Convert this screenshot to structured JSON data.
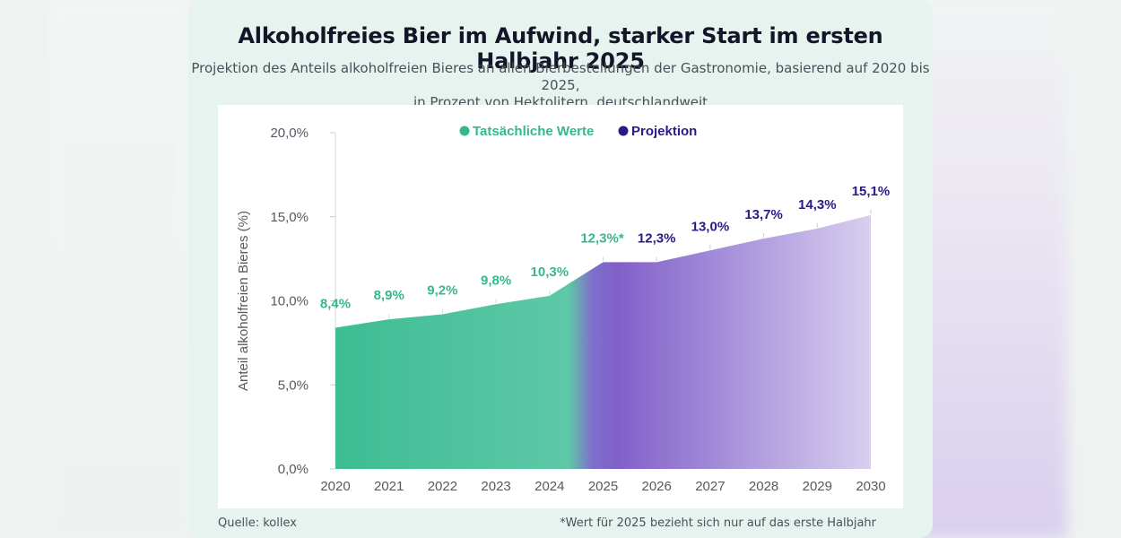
{
  "title": "Alkoholfreies Bier im Aufwind, starker Start im ersten Halbjahr 2025",
  "subtitle_line1": "Projektion des Anteils alkoholfreien Bieres an allen Bierbestellungen der Gastronomie, basierend auf 2020 bis 2025,",
  "subtitle_line2": "in Prozent von Hektolitern, deutschlandweit",
  "source": "Quelle: kollex",
  "footnote": "*Wert für 2025 bezieht sich nur auf das erste Halbjahr",
  "colors": {
    "actual": "#3fbf95",
    "actual_label": "#35b88e",
    "projection": "#7f5fcb",
    "projection_label": "#2a1a86",
    "card": "#e6f3ee"
  },
  "chart_data": {
    "type": "area",
    "ylabel": "Anteil alkoholfreien Bieres (%)",
    "xlabel": "",
    "ylim": [
      0,
      20
    ],
    "yticks": [
      0,
      5,
      10,
      15,
      20
    ],
    "ytick_labels": [
      "0,0%",
      "5,0%",
      "10,0%",
      "15,0%",
      "20,0%"
    ],
    "x": [
      "2020",
      "2021",
      "2022",
      "2023",
      "2024",
      "2025",
      "2026",
      "2027",
      "2028",
      "2029",
      "2030"
    ],
    "legend": [
      "Tatsächliche Werte",
      "Projektion"
    ],
    "legend_position": "top-center",
    "grid": false,
    "series": [
      {
        "name": "Tatsächliche Werte",
        "x": [
          "2020",
          "2021",
          "2022",
          "2023",
          "2024",
          "2025"
        ],
        "values": [
          8.4,
          8.9,
          9.2,
          9.8,
          10.3,
          12.3
        ],
        "labels": [
          "8,4%",
          "8,9%",
          "9,2%",
          "9,8%",
          "10,3%",
          "12,3%*"
        ]
      },
      {
        "name": "Projektion",
        "x": [
          "2026",
          "2027",
          "2028",
          "2029",
          "2030"
        ],
        "values": [
          12.3,
          13.0,
          13.7,
          14.3,
          15.1
        ],
        "labels": [
          "12,3%",
          "13,0%",
          "13,7%",
          "14,3%",
          "15,1%"
        ]
      }
    ]
  }
}
